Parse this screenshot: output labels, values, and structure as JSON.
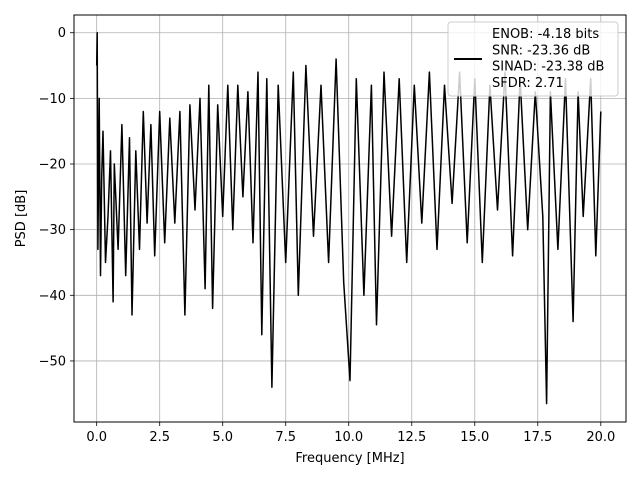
{
  "chart_data": {
    "type": "line",
    "title": "",
    "xlabel": "Frequency [MHz]",
    "ylabel": "PSD [dB]",
    "xlim": [
      -0.9,
      21.0
    ],
    "ylim": [
      -59.3,
      2.7
    ],
    "xticks": [
      0.0,
      2.5,
      5.0,
      7.5,
      10.0,
      12.5,
      15.0,
      17.5,
      20.0
    ],
    "xtick_labels": [
      "0.0",
      "2.5",
      "5.0",
      "7.5",
      "10.0",
      "12.5",
      "15.0",
      "17.5",
      "20.0"
    ],
    "yticks": [
      0,
      -10,
      -20,
      -30,
      -40,
      -50
    ],
    "ytick_labels": [
      "0",
      "−10",
      "−20",
      "−30",
      "−40",
      "−50"
    ],
    "grid": true,
    "legend_position": "top-right",
    "legend_lines": [
      "ENOB: -4.18 bits",
      "SNR: -23.36 dB",
      "SINAD: -23.38 dB",
      "SFDR: 2.71"
    ],
    "line_color": "#000000",
    "series": [
      {
        "x": [
          0.0,
          0.02,
          0.05,
          0.1,
          0.15,
          0.2,
          0.25,
          0.35,
          0.45,
          0.55,
          0.65,
          0.7,
          0.85,
          1.0,
          1.15,
          1.3,
          1.4,
          1.55,
          1.7,
          1.85,
          2.0,
          2.15,
          2.3,
          2.5,
          2.7,
          2.9,
          3.1,
          3.3,
          3.5,
          3.7,
          3.9,
          4.1,
          4.3,
          4.45,
          4.6,
          4.8,
          5.0,
          5.2,
          5.4,
          5.6,
          5.8,
          6.0,
          6.2,
          6.4,
          6.55,
          6.75,
          6.95,
          7.2,
          7.5,
          7.8,
          8.0,
          8.3,
          8.6,
          8.9,
          9.2,
          9.5,
          9.8,
          10.05,
          10.3,
          10.6,
          10.9,
          11.1,
          11.4,
          11.7,
          12.0,
          12.3,
          12.6,
          12.9,
          13.2,
          13.5,
          13.8,
          14.1,
          14.4,
          14.7,
          15.0,
          15.3,
          15.6,
          15.9,
          16.2,
          16.5,
          16.8,
          17.1,
          17.4,
          17.7,
          17.85,
          18.0,
          18.3,
          18.6,
          18.9,
          19.1,
          19.3,
          19.6,
          19.8,
          20.0
        ],
        "y": [
          -5,
          0,
          -33,
          -10,
          -37,
          -22,
          -15,
          -35,
          -28,
          -18,
          -41,
          -20,
          -33,
          -14,
          -37,
          -16,
          -43,
          -18,
          -33,
          -12,
          -29,
          -14,
          -34,
          -12,
          -32,
          -13,
          -29,
          -12,
          -43,
          -11,
          -27,
          -10,
          -39,
          -8,
          -42,
          -11,
          -28,
          -8,
          -30,
          -8,
          -25,
          -9,
          -32,
          -6,
          -46,
          -7,
          -54,
          -8,
          -35,
          -6,
          -40,
          -5,
          -31,
          -8,
          -35,
          -4,
          -38,
          -53,
          -7,
          -40,
          -8,
          -44.5,
          -6,
          -31,
          -7,
          -35,
          -8,
          -29,
          -6,
          -33,
          -8,
          -26,
          -6,
          -32,
          -7,
          -35,
          -8,
          -27,
          -6,
          -34,
          -7,
          -30,
          -9,
          -28,
          -56.5,
          -9,
          -33,
          -7,
          -44,
          -9,
          -28,
          -7,
          -34,
          -12
        ]
      }
    ]
  }
}
